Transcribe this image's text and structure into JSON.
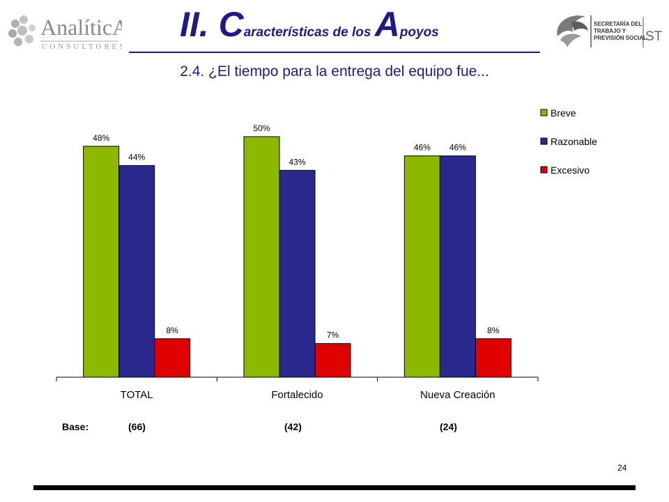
{
  "header": {
    "title_big_1": "II. C",
    "title_small_1": "aracterísticas de los ",
    "title_big_2": "A",
    "title_small_2": "poyos",
    "subtitle": "2.4. ¿El tiempo para la entrega del equipo fue...",
    "logo_left_text": "AnalíticA",
    "logo_left_subtext": "CONSULTORES",
    "logo_right_text_1": "SECRETARÍA DEL",
    "logo_right_text_2": "TRABAJO Y",
    "logo_right_text_3": "PREVISIÓN SOCIAL",
    "logo_right_text_4": "STPS"
  },
  "chart_data": {
    "type": "bar",
    "categories": [
      "TOTAL",
      "Fortalecido",
      "Nueva Creación"
    ],
    "series": [
      {
        "name": "Breve",
        "values": [
          48,
          50,
          46
        ],
        "labels": [
          "48%",
          "50%",
          "46%"
        ],
        "color": "#8db800"
      },
      {
        "name": "Razonable",
        "values": [
          44,
          43,
          46
        ],
        "labels": [
          "44%",
          "43%",
          "46%"
        ],
        "color": "#2a2a8e"
      },
      {
        "name": "Excesivo",
        "values": [
          8,
          7,
          8
        ],
        "labels": [
          "8%",
          "7%",
          "8%"
        ],
        "color": "#e00000"
      }
    ],
    "ylim": [
      0,
      55
    ],
    "grid": false,
    "legend": "top-right"
  },
  "base": {
    "label": "Base:",
    "values": [
      "(66)",
      "(42)",
      "(24)"
    ]
  },
  "footer": {
    "page_number": "24"
  }
}
